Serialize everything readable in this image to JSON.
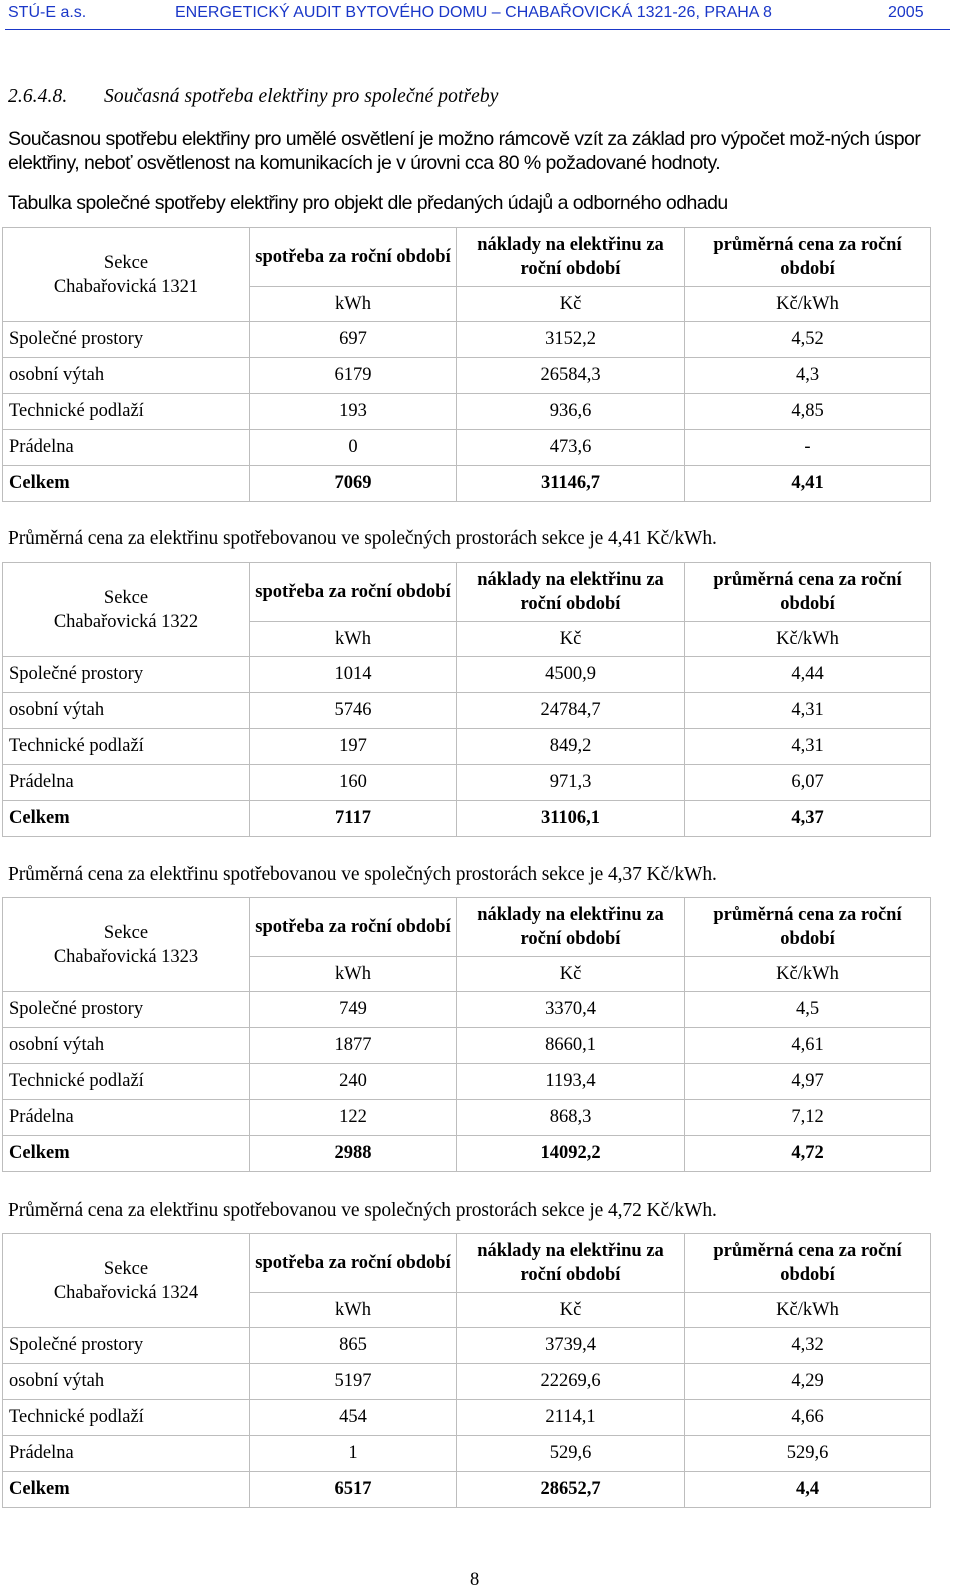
{
  "header": {
    "company": "STÚ-E a.s.",
    "title": "ENERGETICKÝ AUDIT BYTOVÉHO DOMU – CHABAŘOVICKÁ 1321-26, PRAHA 8",
    "year": "2005"
  },
  "section": {
    "number": "2.6.4.8.",
    "title": "Současná spotřeba elektřiny pro společné potřeby"
  },
  "paragraphs": {
    "intro": "Současnou spotřebu elektřiny pro umělé osvětlení je možno rámcově vzít za základ pro výpočet mož-ných úspor elektřiny, neboť osvětlenost na komunikacích je v úrovni cca 80 % požadované hodnoty.",
    "table_intro": "Tabulka společné spotřeby elektřiny pro objekt dle předaných údajů a odborného odhadu"
  },
  "columns": {
    "consumption": "spotřeba za roční období",
    "costs": "náklady na elektřinu za roční období",
    "avg_price": "průměrná cena za roční období",
    "unit_consumption": "kWh",
    "unit_costs": "Kč",
    "unit_price": "Kč/kWh"
  },
  "tables": [
    {
      "section_label": "Sekce",
      "section_name": "Chabařovická 1321",
      "rows": [
        {
          "label": "Společné prostory",
          "kwh": "697",
          "cost": "3152,2",
          "price": "4,52"
        },
        {
          "label": "osobní výtah",
          "kwh": "6179",
          "cost": "26584,3",
          "price": "4,3"
        },
        {
          "label": "Technické podlaží",
          "kwh": "193",
          "cost": "936,6",
          "price": "4,85"
        },
        {
          "label": "Prádelna",
          "kwh": "0",
          "cost": "473,6",
          "price": "-"
        }
      ],
      "total": {
        "label": "Celkem",
        "kwh": "7069",
        "cost": "31146,7",
        "price": "4,41"
      },
      "note": "Průměrná cena za elektřinu spotřebovanou ve společných prostorách sekce je 4,41 Kč/kWh."
    },
    {
      "section_label": "Sekce",
      "section_name": "Chabařovická 1322",
      "rows": [
        {
          "label": "Společné prostory",
          "kwh": "1014",
          "cost": "4500,9",
          "price": "4,44"
        },
        {
          "label": "osobní výtah",
          "kwh": "5746",
          "cost": "24784,7",
          "price": "4,31"
        },
        {
          "label": "Technické podlaží",
          "kwh": "197",
          "cost": "849,2",
          "price": "4,31"
        },
        {
          "label": "Prádelna",
          "kwh": "160",
          "cost": "971,3",
          "price": "6,07"
        }
      ],
      "total": {
        "label": "Celkem",
        "kwh": "7117",
        "cost": "31106,1",
        "price": "4,37"
      },
      "note": "Průměrná cena za elektřinu spotřebovanou ve společných prostorách sekce je 4,37 Kč/kWh."
    },
    {
      "section_label": "Sekce",
      "section_name": "Chabařovická 1323",
      "rows": [
        {
          "label": "Společné prostory",
          "kwh": "749",
          "cost": "3370,4",
          "price": "4,5"
        },
        {
          "label": "osobní výtah",
          "kwh": "1877",
          "cost": "8660,1",
          "price": "4,61"
        },
        {
          "label": "Technické podlaží",
          "kwh": "240",
          "cost": "1193,4",
          "price": "4,97"
        },
        {
          "label": "Prádelna",
          "kwh": "122",
          "cost": "868,3",
          "price": "7,12"
        }
      ],
      "total": {
        "label": "Celkem",
        "kwh": "2988",
        "cost": "14092,2",
        "price": "4,72"
      },
      "note": "Průměrná cena za elektřinu spotřebovanou ve společných prostorách sekce je 4,72 Kč/kWh."
    },
    {
      "section_label": "Sekce",
      "section_name": "Chabařovická 1324",
      "rows": [
        {
          "label": "Společné prostory",
          "kwh": "865",
          "cost": "3739,4",
          "price": "4,32"
        },
        {
          "label": "osobní výtah",
          "kwh": "5197",
          "cost": "22269,6",
          "price": "4,29"
        },
        {
          "label": "Technické podlaží",
          "kwh": "454",
          "cost": "2114,1",
          "price": "4,66"
        },
        {
          "label": "Prádelna",
          "kwh": "1",
          "cost": "529,6",
          "price": "529,6"
        }
      ],
      "total": {
        "label": "Celkem",
        "kwh": "6517",
        "cost": "28652,7",
        "price": "4,4"
      }
    }
  ],
  "page_number": "8"
}
